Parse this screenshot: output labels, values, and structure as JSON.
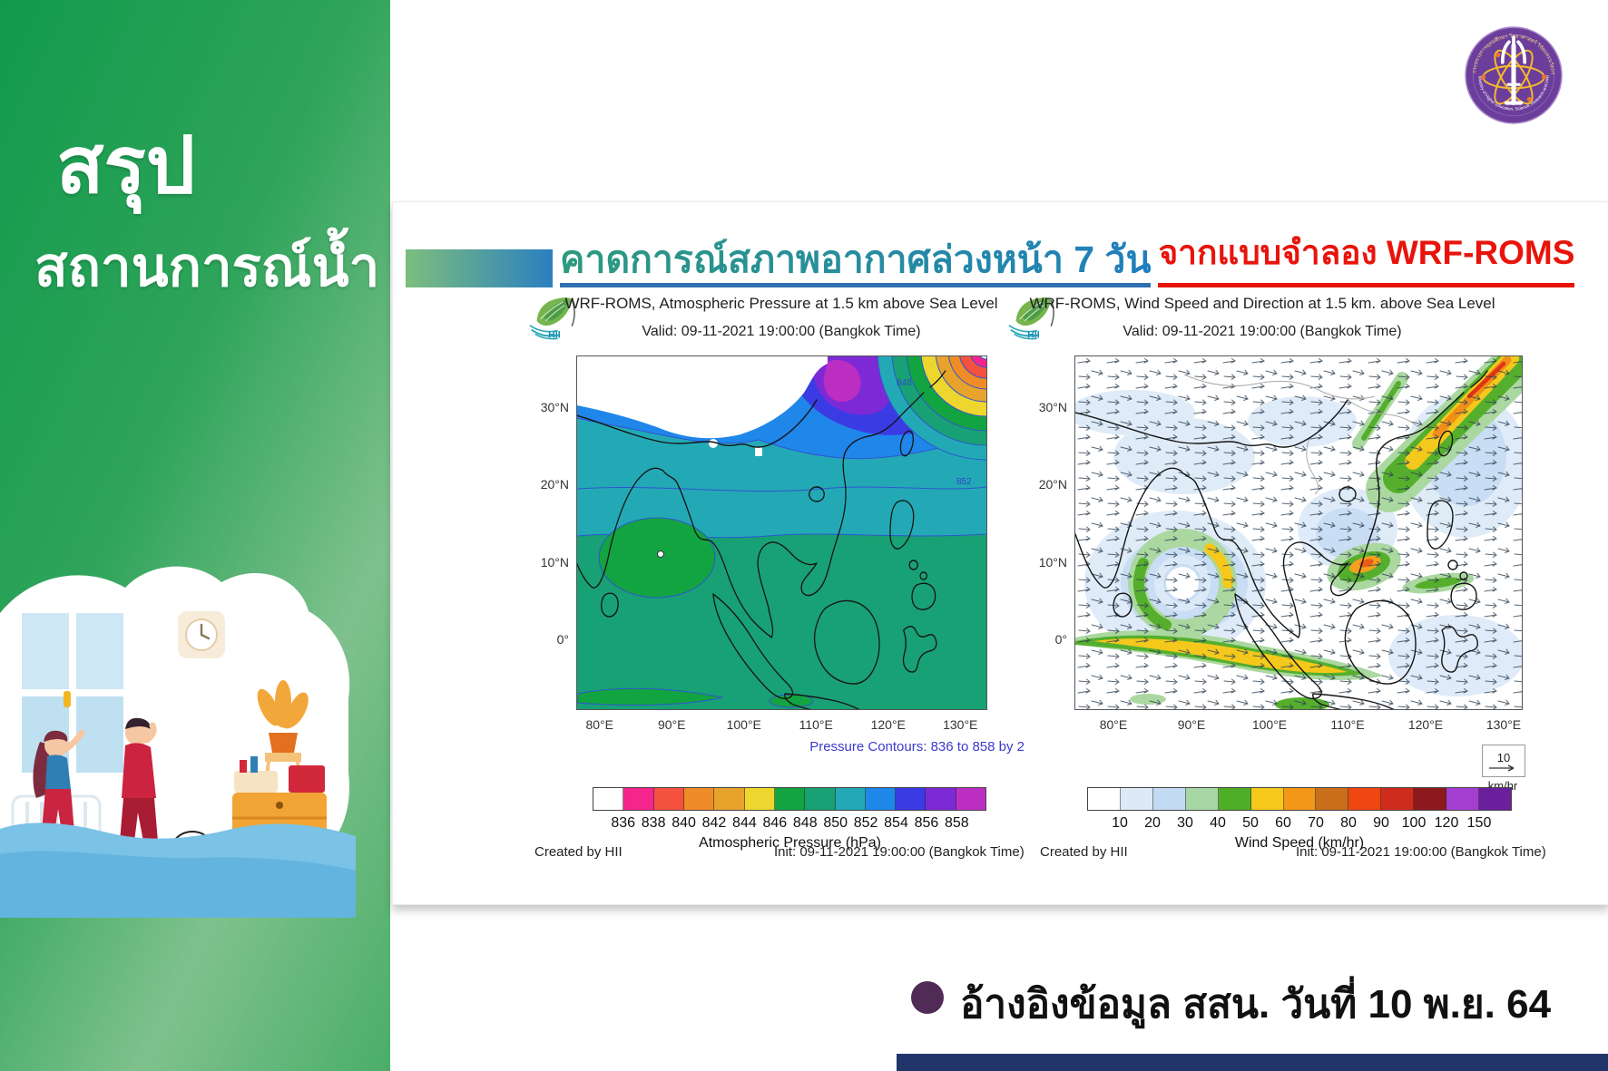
{
  "sidebar": {
    "title_line1": "สรุป",
    "title_line2": "สถานการณ์น้ำ"
  },
  "slide_header": {
    "title": "คาดการณ์สภาพอากาศล่วงหน้า 7 วัน",
    "subtitle": "จากแบบจำลอง  WRF-ROMS"
  },
  "ministry_logo": {
    "ring_text_thai": "กระทรวงการอุดมศึกษา วิทยาศาสตร์ วิจัยและนวัตกรรม",
    "ring_text_english": "Ministry of Higher Education, Science, Research and Innovation"
  },
  "footer": {
    "text": "อ้างอิงข้อมูล  สสน. วันที่ 10 พ.ย. 64"
  },
  "colors": {
    "sidebar_green": "#129a4c",
    "title_teal": "#1f7fbe",
    "title_red": "#e8140c",
    "footer_bullet": "#4f2b55",
    "bottom_bar_navy": "#21356b"
  },
  "chart_data": [
    {
      "type": "heatmap",
      "logo": "HII",
      "title": "WRF-ROMS, Atmospheric Pressure at 1.5 km above Sea Level",
      "subtitle": "Valid: 09-11-2021 19:00:00 (Bangkok Time)",
      "x_ticks": [
        "80°E",
        "90°E",
        "100°E",
        "110°E",
        "120°E",
        "130°E"
      ],
      "y_ticks": [
        "30°N",
        "20°N",
        "10°N",
        "0°"
      ],
      "colorbar": {
        "label": "Atmospheric Pressure (hPa)",
        "ticks": [
          836,
          838,
          840,
          842,
          844,
          846,
          848,
          850,
          852,
          854,
          856,
          858
        ],
        "colors": [
          "#FFFFFF",
          "#F5258C",
          "#F4513F",
          "#F08C28",
          "#E8A32C",
          "#EDD62E",
          "#12A441",
          "#18A175",
          "#23A9B6",
          "#1F86EA",
          "#3B3BE4",
          "#7D2AD6",
          "#BC2EC2"
        ]
      },
      "contour_note": "Pressure Contours: 836 to 858 by 2",
      "contour_labels": [
        "852",
        "848"
      ],
      "created_by": "Created by HII",
      "init": "Init: 09-11-2021 19:00:00 (Bangkok Time)",
      "features": [
        "848-850 hPa (sea green) over most of the map south of ~12°N",
        "846-848 hPa (green) closed cell over the Bay of Bengal near 10°N 85°E and small cells near Java",
        "850-852 hPa (teal) band across ~12-27°N",
        "852-856 hPa (blue) over southern China with 856->858 hPa (purple/magenta) core near 30°N 105°E",
        "Tight gradient rings stepping down 846->836 hPa in the far northeast corner",
        "White masked terrain over the Tibetan Plateau / Himalayas"
      ]
    },
    {
      "type": "heatmap",
      "logo": "HII",
      "title": "WRF-ROMS, Wind Speed and Direction at 1.5 km. above Sea Level",
      "subtitle": "Valid: 09-11-2021 19:00:00 (Bangkok Time)",
      "x_ticks": [
        "80°E",
        "90°E",
        "100°E",
        "110°E",
        "120°E",
        "130°E"
      ],
      "y_ticks": [
        "30°N",
        "20°N",
        "10°N",
        "0°"
      ],
      "colorbar": {
        "label": "Wind Speed (km/hr)",
        "ticks": [
          10,
          20,
          30,
          40,
          50,
          60,
          70,
          80,
          90,
          100,
          120,
          150
        ],
        "colors": [
          "#FFFFFF",
          "#DDE9F7",
          "#C2DBF2",
          "#A6D7A4",
          "#4FAE27",
          "#F6C81C",
          "#F39718",
          "#C96F1C",
          "#F04612",
          "#D02C1E",
          "#8C1A1C",
          "#A43FD2",
          "#6B1F9C"
        ]
      },
      "vector_legend": {
        "value": "10",
        "unit": "km/hr"
      },
      "created_by": "Created by HII",
      "init": "Init: 09-11-2021 19:00:00 (Bangkok Time)",
      "features": [
        "Cyclonic circulation over the Bay of Bengal near 9°N 85°E with a 30-60 km/hr ring",
        "40-70 km/hr westerly band along the equator between 80-110°E",
        "50-80 km/hr patch over southern Vietnam / South China Sea",
        "60-100+ km/hr northeasterly jet over southeast China and Taiwan in the northeast corner",
        "Light winds (<20 km/hr, white/pale blue) elsewhere shown by small direction arrows"
      ]
    }
  ]
}
